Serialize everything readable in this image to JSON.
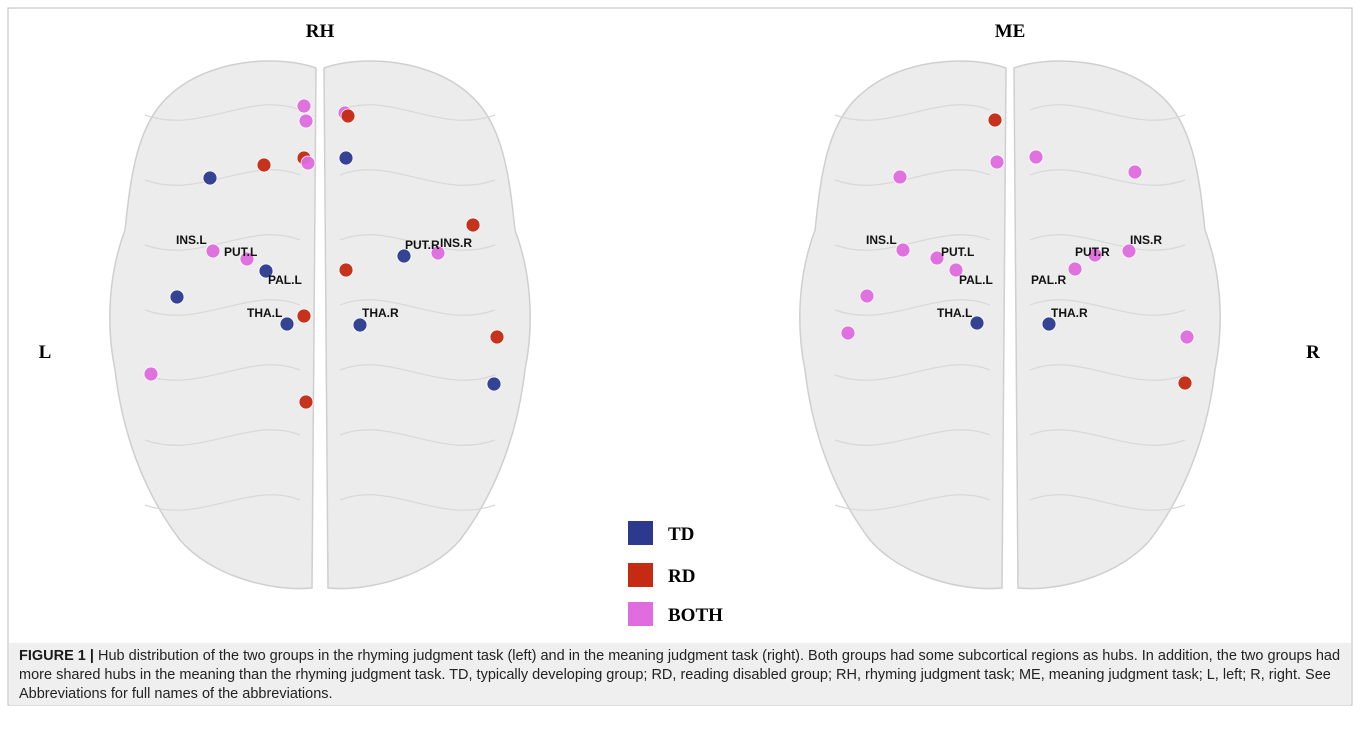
{
  "panels": [
    {
      "title": "RH",
      "labels": [
        "INS.L",
        "PUT.L",
        "PAL.L",
        "THA.L",
        "PUT.R",
        "INS.R",
        "THA.R"
      ]
    },
    {
      "title": "ME",
      "labels": [
        "INS.L",
        "PUT.L",
        "PAL.L",
        "THA.L",
        "PUT.R",
        "INS.R",
        "PAL.R",
        "THA.R"
      ]
    }
  ],
  "side_labels": [
    "L",
    "R"
  ],
  "legend": [
    "TD",
    "RD",
    "BOTH"
  ],
  "caption": {
    "label": "FIGURE 1 |",
    "text": "Hub distribution of the two groups in the rhyming judgment task (left) and in the meaning judgment task (right). Both groups had some subcortical regions as hubs. In addition, the two groups had more shared hubs in the meaning than the rhyming judgment task. TD, typically developing group; RD, reading disabled group; RH, rhyming judgment task; ME, meaning judgment task; L, left; R, right. See Abbreviations for full names of the abbreviations."
  }
}
